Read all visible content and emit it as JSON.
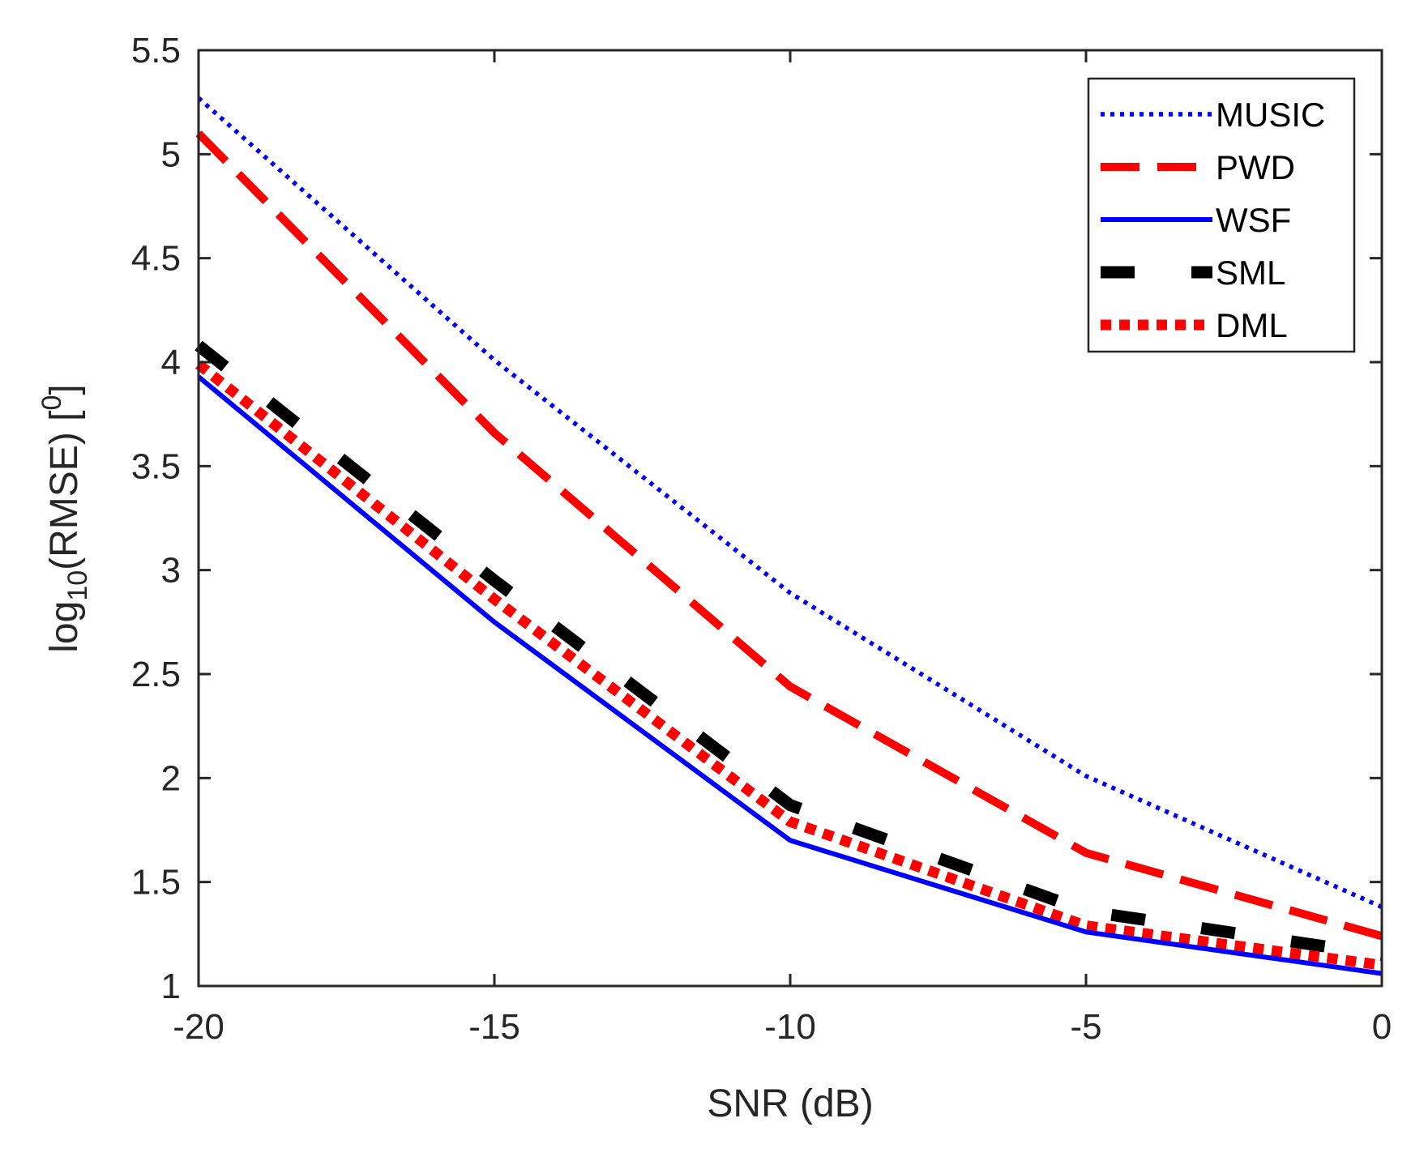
{
  "chart_data": {
    "type": "line",
    "title": "",
    "xlabel": "SNR (dB)",
    "ylabel": {
      "base": "log",
      "subscript": "10",
      "main": "(RMSE) [",
      "superscript": "0",
      "close": "]"
    },
    "x": [
      -20,
      -15,
      -10,
      -5,
      0
    ],
    "xlim": [
      -20,
      0
    ],
    "ylim": [
      1,
      5.5
    ],
    "xticks": [
      -20,
      -15,
      -10,
      -5,
      0
    ],
    "xtick_labels": [
      "-20",
      "-15",
      "-10",
      "-5",
      "0"
    ],
    "yticks": [
      1,
      1.5,
      2,
      2.5,
      3,
      3.5,
      4,
      4.5,
      5,
      5.5
    ],
    "ytick_labels": [
      "1",
      "1.5",
      "2",
      "2.5",
      "3",
      "3.5",
      "4",
      "4.5",
      "5",
      "5.5"
    ],
    "grid": false,
    "legend_position": "top-right",
    "series": [
      {
        "name": "MUSIC",
        "values": [
          5.27,
          4.01,
          2.89,
          2.01,
          1.38
        ],
        "color": "#0000ff",
        "style": "dotted"
      },
      {
        "name": "PWD",
        "values": [
          5.1,
          3.66,
          2.44,
          1.64,
          1.24
        ],
        "color": "#ff0000",
        "style": "dashed"
      },
      {
        "name": "WSF",
        "values": [
          3.93,
          2.75,
          1.7,
          1.26,
          1.06
        ],
        "color": "#0000ff",
        "style": "solid"
      },
      {
        "name": "SML",
        "values": [
          4.08,
          2.95,
          1.87,
          1.36,
          1.15
        ],
        "color": "#000000",
        "style": "long-dash"
      },
      {
        "name": "DML",
        "values": [
          3.99,
          2.86,
          1.79,
          1.29,
          1.1
        ],
        "color": "#ff0000",
        "style": "thick-dotted"
      }
    ]
  }
}
